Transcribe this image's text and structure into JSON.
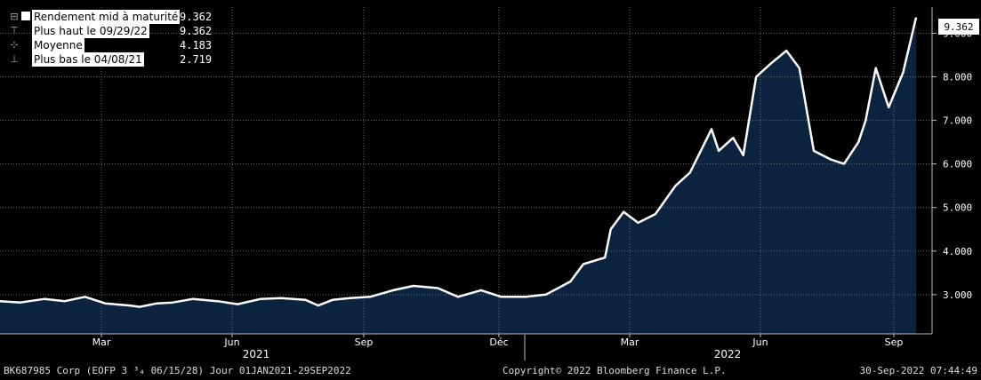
{
  "legend": {
    "items": [
      {
        "label": "Rendement mid à maturité",
        "value": "9.362"
      },
      {
        "label": "Plus haut le 09/29/22",
        "value": "9.362"
      },
      {
        "label": "Moyenne",
        "value": "4.183"
      },
      {
        "label": "Plus bas le 04/08/21",
        "value": "2.719"
      }
    ]
  },
  "footer": {
    "left": "BK687985 Corp (EOFP 3 ³₄ 06/15/28) Jour 01JAN2021-29SEP2022",
    "center": "Copyright© 2022 Bloomberg Finance L.P.",
    "right": "30-Sep-2022 07:44:49"
  },
  "colors": {
    "background": "#000000",
    "area_fill": "#0c2340",
    "line": "#ffffff",
    "grid": "#6e6e6e"
  },
  "chart_data": {
    "type": "area",
    "title": "",
    "ylabel": "",
    "xlabel": "",
    "y_axis_position": "right",
    "ylim": [
      2.1,
      9.6
    ],
    "yticks": [
      "3.000",
      "4.000",
      "5.000",
      "6.000",
      "7.000",
      "8.000",
      "9.000"
    ],
    "last_value_label": "9.362",
    "x_tick_labels": [
      "Mar",
      "Jun",
      "Sep",
      "Déc",
      "Mar",
      "Jun",
      "Sep"
    ],
    "year_labels": [
      "2021",
      "2022"
    ],
    "grid": true,
    "legend_position": "top-left",
    "series": [
      {
        "name": "Rendement mid à maturité",
        "x": [
          "2021-01-01",
          "2021-01-15",
          "2021-02-01",
          "2021-02-15",
          "2021-03-01",
          "2021-03-15",
          "2021-04-01",
          "2021-04-08",
          "2021-04-20",
          "2021-05-01",
          "2021-05-15",
          "2021-06-01",
          "2021-06-15",
          "2021-07-01",
          "2021-07-15",
          "2021-08-01",
          "2021-08-10",
          "2021-08-20",
          "2021-09-01",
          "2021-09-15",
          "2021-10-01",
          "2021-10-15",
          "2021-11-01",
          "2021-11-15",
          "2021-12-01",
          "2021-12-15",
          "2022-01-01",
          "2022-01-15",
          "2022-02-01",
          "2022-02-10",
          "2022-02-15",
          "2022-02-25",
          "2022-03-01",
          "2022-03-10",
          "2022-03-20",
          "2022-04-01",
          "2022-04-15",
          "2022-04-25",
          "2022-05-01",
          "2022-05-10",
          "2022-05-15",
          "2022-05-25",
          "2022-06-01",
          "2022-06-10",
          "2022-06-20",
          "2022-07-01",
          "2022-07-10",
          "2022-07-20",
          "2022-08-01",
          "2022-08-10",
          "2022-08-20",
          "2022-08-25",
          "2022-09-01",
          "2022-09-10",
          "2022-09-20",
          "2022-09-29"
        ],
        "y": [
          2.85,
          2.82,
          2.9,
          2.85,
          2.95,
          2.8,
          2.75,
          2.719,
          2.8,
          2.82,
          2.9,
          2.85,
          2.78,
          2.9,
          2.92,
          2.88,
          2.75,
          2.88,
          2.92,
          2.95,
          3.1,
          3.2,
          3.15,
          2.95,
          3.1,
          2.95,
          2.95,
          3.0,
          3.3,
          3.7,
          3.75,
          3.85,
          4.5,
          4.9,
          4.65,
          4.85,
          5.5,
          5.8,
          6.2,
          6.8,
          6.3,
          6.6,
          6.2,
          8.0,
          8.3,
          8.6,
          8.2,
          6.3,
          6.1,
          6.0,
          6.5,
          7.0,
          8.2,
          7.3,
          8.1,
          9.362
        ]
      }
    ]
  }
}
